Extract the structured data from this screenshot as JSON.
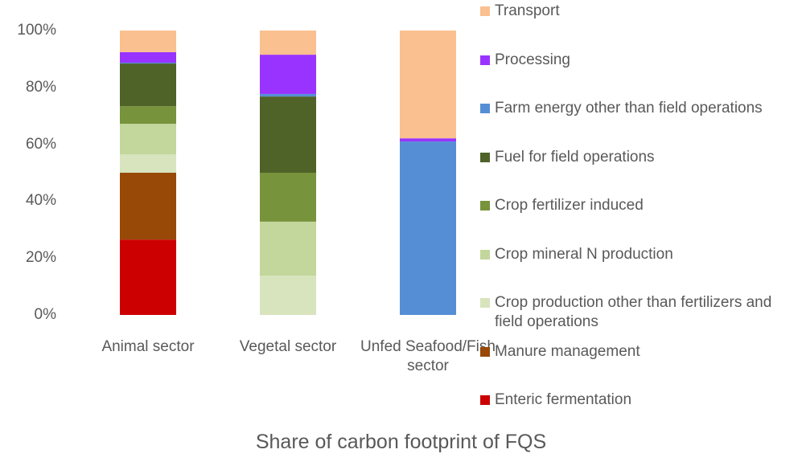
{
  "chart_data": {
    "type": "stacked_bar",
    "title": "Share of carbon footprint of FQS",
    "categories": [
      "Animal sector",
      "Vegetal sector",
      "Unfed Seafood/Fish sector"
    ],
    "series": [
      {
        "name": "Enteric fermentation",
        "color": "#cc0000",
        "values": [
          26.5,
          0,
          0
        ]
      },
      {
        "name": "Manure management",
        "color": "#984807",
        "values": [
          23.5,
          0,
          0
        ]
      },
      {
        "name": "Crop production other than fertilizers and field operations",
        "color": "#d7e4bd",
        "values": [
          6.5,
          13.8,
          0
        ]
      },
      {
        "name": "Crop mineral N production",
        "color": "#c3d69b",
        "values": [
          10.7,
          19,
          0
        ]
      },
      {
        "name": "Crop fertilizer induced",
        "color": "#77933c",
        "values": [
          6.2,
          17.2,
          0
        ]
      },
      {
        "name": "Fuel for field operations",
        "color": "#4f6228",
        "values": [
          15,
          26.8,
          0
        ]
      },
      {
        "name": "Farm energy other than field operations",
        "color": "#558ed5",
        "values": [
          0.3,
          0.9,
          61
        ]
      },
      {
        "name": "Processing",
        "color": "#9933ff",
        "values": [
          3.7,
          13.8,
          1.1
        ]
      },
      {
        "name": "Transport",
        "color": "#fac090",
        "values": [
          7.6,
          8.5,
          37.9
        ]
      }
    ],
    "ylim": [
      0,
      100
    ],
    "yticks": [
      {
        "value": 0,
        "label": "0%"
      },
      {
        "value": 20,
        "label": "20%"
      },
      {
        "value": 40,
        "label": "40%"
      },
      {
        "value": 60,
        "label": "60%"
      },
      {
        "value": 80,
        "label": "80%"
      },
      {
        "value": 100,
        "label": "100%"
      }
    ],
    "grid": false
  }
}
